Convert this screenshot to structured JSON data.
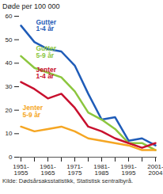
{
  "chart_data": {
    "type": "line",
    "y_label": "Døde per 100 000",
    "source": "Kilde: Dødsårsaksstatistikk, Statistisk sentralbyrå.",
    "categories": [
      "1951-1955",
      null,
      "1961-1965",
      null,
      "1971-1975",
      null,
      "1981-1985",
      null,
      "1991-1995",
      null,
      "2001-2004"
    ],
    "series": [
      {
        "name": "Gutter 1-4 år",
        "color": "#1f5cb8",
        "values": [
          56,
          49,
          46,
          45,
          39,
          27,
          16,
          17,
          7,
          8,
          5
        ]
      },
      {
        "name": "Gutter 5-9 år",
        "color": "#8cc63e",
        "values": [
          43,
          38,
          36,
          34,
          28,
          19,
          16,
          12,
          6,
          6,
          3
        ]
      },
      {
        "name": "Jenter 1-4 år",
        "color": "#c8102e",
        "values": [
          32,
          29,
          25,
          27,
          21,
          13,
          11,
          8,
          6,
          4,
          6
        ]
      },
      {
        "name": "Jenter 5-9 år",
        "color": "#f5a623",
        "values": [
          13,
          11,
          12,
          13,
          11,
          8,
          7,
          6,
          5,
          3,
          3
        ]
      }
    ],
    "ylim": [
      0,
      60
    ],
    "yticks": [
      0,
      10,
      20,
      30,
      40,
      50,
      60
    ],
    "grid": false
  }
}
